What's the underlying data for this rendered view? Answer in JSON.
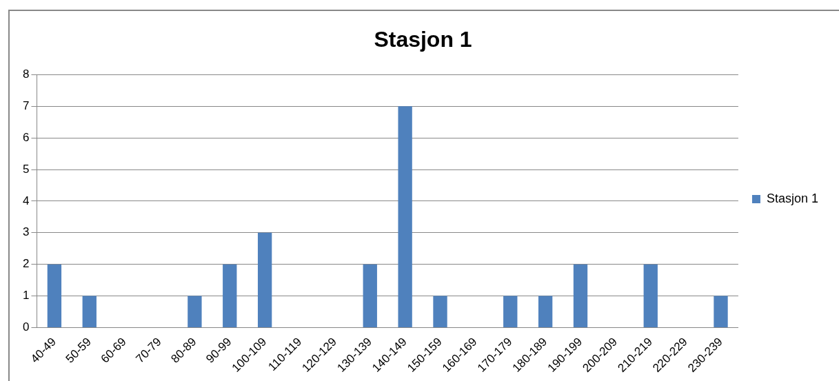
{
  "chart_data": {
    "type": "bar",
    "title": "Stasjon 1",
    "categories": [
      "40-49",
      "50-59",
      "60-69",
      "70-79",
      "80-89",
      "90-99",
      "100-109",
      "110-119",
      "120-129",
      "130-139",
      "140-149",
      "150-159",
      "160-169",
      "170-179",
      "180-189",
      "190-199",
      "200-209",
      "210-219",
      "220-229",
      "230-239"
    ],
    "series": [
      {
        "name": "Stasjon 1",
        "color": "#4f81bd",
        "values": [
          2,
          1,
          0,
          0,
          1,
          2,
          3,
          0,
          0,
          2,
          7,
          1,
          0,
          1,
          1,
          2,
          0,
          2,
          0,
          1
        ]
      }
    ],
    "ylim": [
      0,
      8
    ],
    "yticks": [
      0,
      1,
      2,
      3,
      4,
      5,
      6,
      7,
      8
    ],
    "grid": "y",
    "legend": "right"
  }
}
